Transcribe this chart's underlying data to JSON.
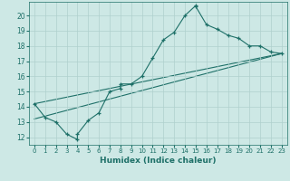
{
  "title": "",
  "xlabel": "Humidex (Indice chaleur)",
  "xlim": [
    -0.5,
    23.5
  ],
  "ylim": [
    11.5,
    20.9
  ],
  "yticks": [
    12,
    13,
    14,
    15,
    16,
    17,
    18,
    19,
    20
  ],
  "xticks": [
    0,
    1,
    2,
    3,
    4,
    5,
    6,
    7,
    8,
    9,
    10,
    11,
    12,
    13,
    14,
    15,
    16,
    17,
    18,
    19,
    20,
    21,
    22,
    23
  ],
  "bg_color": "#cde8e5",
  "line_color": "#1e7068",
  "grid_color": "#afd0cd",
  "line1_x": [
    0,
    1,
    2,
    3,
    4,
    4,
    5,
    6,
    7,
    8,
    8,
    9,
    10,
    11,
    12,
    13,
    14,
    15,
    15,
    16,
    17,
    18,
    19,
    20,
    21,
    22,
    23
  ],
  "line1_y": [
    14.2,
    13.3,
    13.0,
    12.2,
    11.85,
    12.2,
    13.1,
    13.6,
    15.0,
    15.2,
    15.5,
    15.5,
    16.0,
    17.2,
    18.4,
    18.9,
    20.0,
    20.65,
    20.6,
    19.4,
    19.1,
    18.7,
    18.5,
    18.0,
    18.0,
    17.6,
    17.5
  ],
  "line2_x": [
    0,
    23
  ],
  "line2_y": [
    13.2,
    17.5
  ],
  "line3_x": [
    0,
    23
  ],
  "line3_y": [
    14.2,
    17.5
  ]
}
